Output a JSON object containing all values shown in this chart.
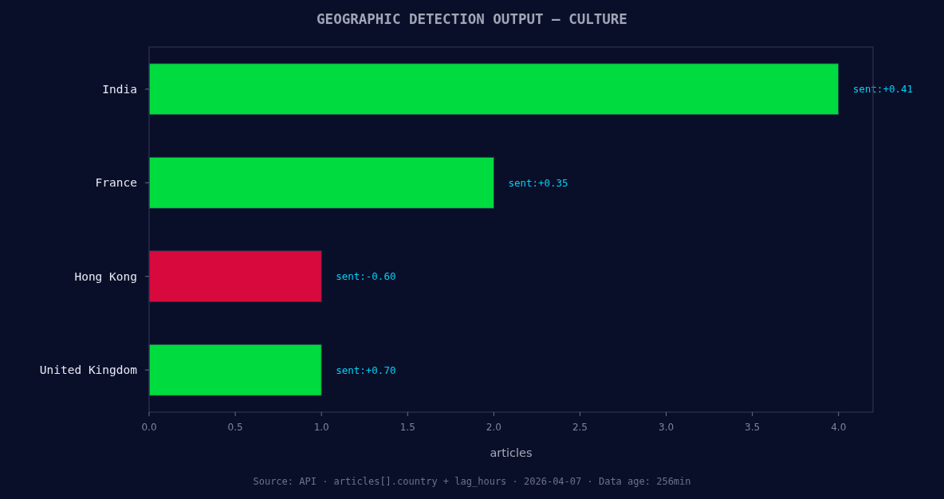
{
  "chart_data": {
    "type": "bar",
    "orientation": "horizontal",
    "title": "GEOGRAPHIC DETECTION OUTPUT — CULTURE",
    "xlabel": "articles",
    "categories": [
      "India",
      "France",
      "Hong Kong",
      "United Kingdom"
    ],
    "values": [
      4,
      2,
      1,
      1
    ],
    "colors": [
      "#00dc3f",
      "#00dc3f",
      "#d80a3d",
      "#00dc3f"
    ],
    "xlim": [
      0,
      4.2
    ],
    "xticks": [
      {
        "value": 0,
        "label": "0.0"
      },
      0.5,
      {
        "value": 1,
        "label": "1.0"
      },
      1.5,
      {
        "value": 2,
        "label": "2.0"
      },
      2.5,
      {
        "value": 3,
        "label": "3.0"
      },
      3.5,
      {
        "value": 4,
        "label": "4.0"
      }
    ],
    "grid": false,
    "annotations": [
      {
        "text": "sent:+0.41",
        "x": 4,
        "y": "India"
      },
      {
        "text": "sent:+0.35",
        "x": 2,
        "y": "France"
      },
      {
        "text": "sent:-0.60",
        "x": 1,
        "y": "Hong Kong"
      },
      {
        "text": "sent:+0.70",
        "x": 1,
        "y": "United Kingdom"
      },
      "Source: API · articles[].country + lag_hours · 2026-04-07 · Data age: 256min"
    ]
  }
}
